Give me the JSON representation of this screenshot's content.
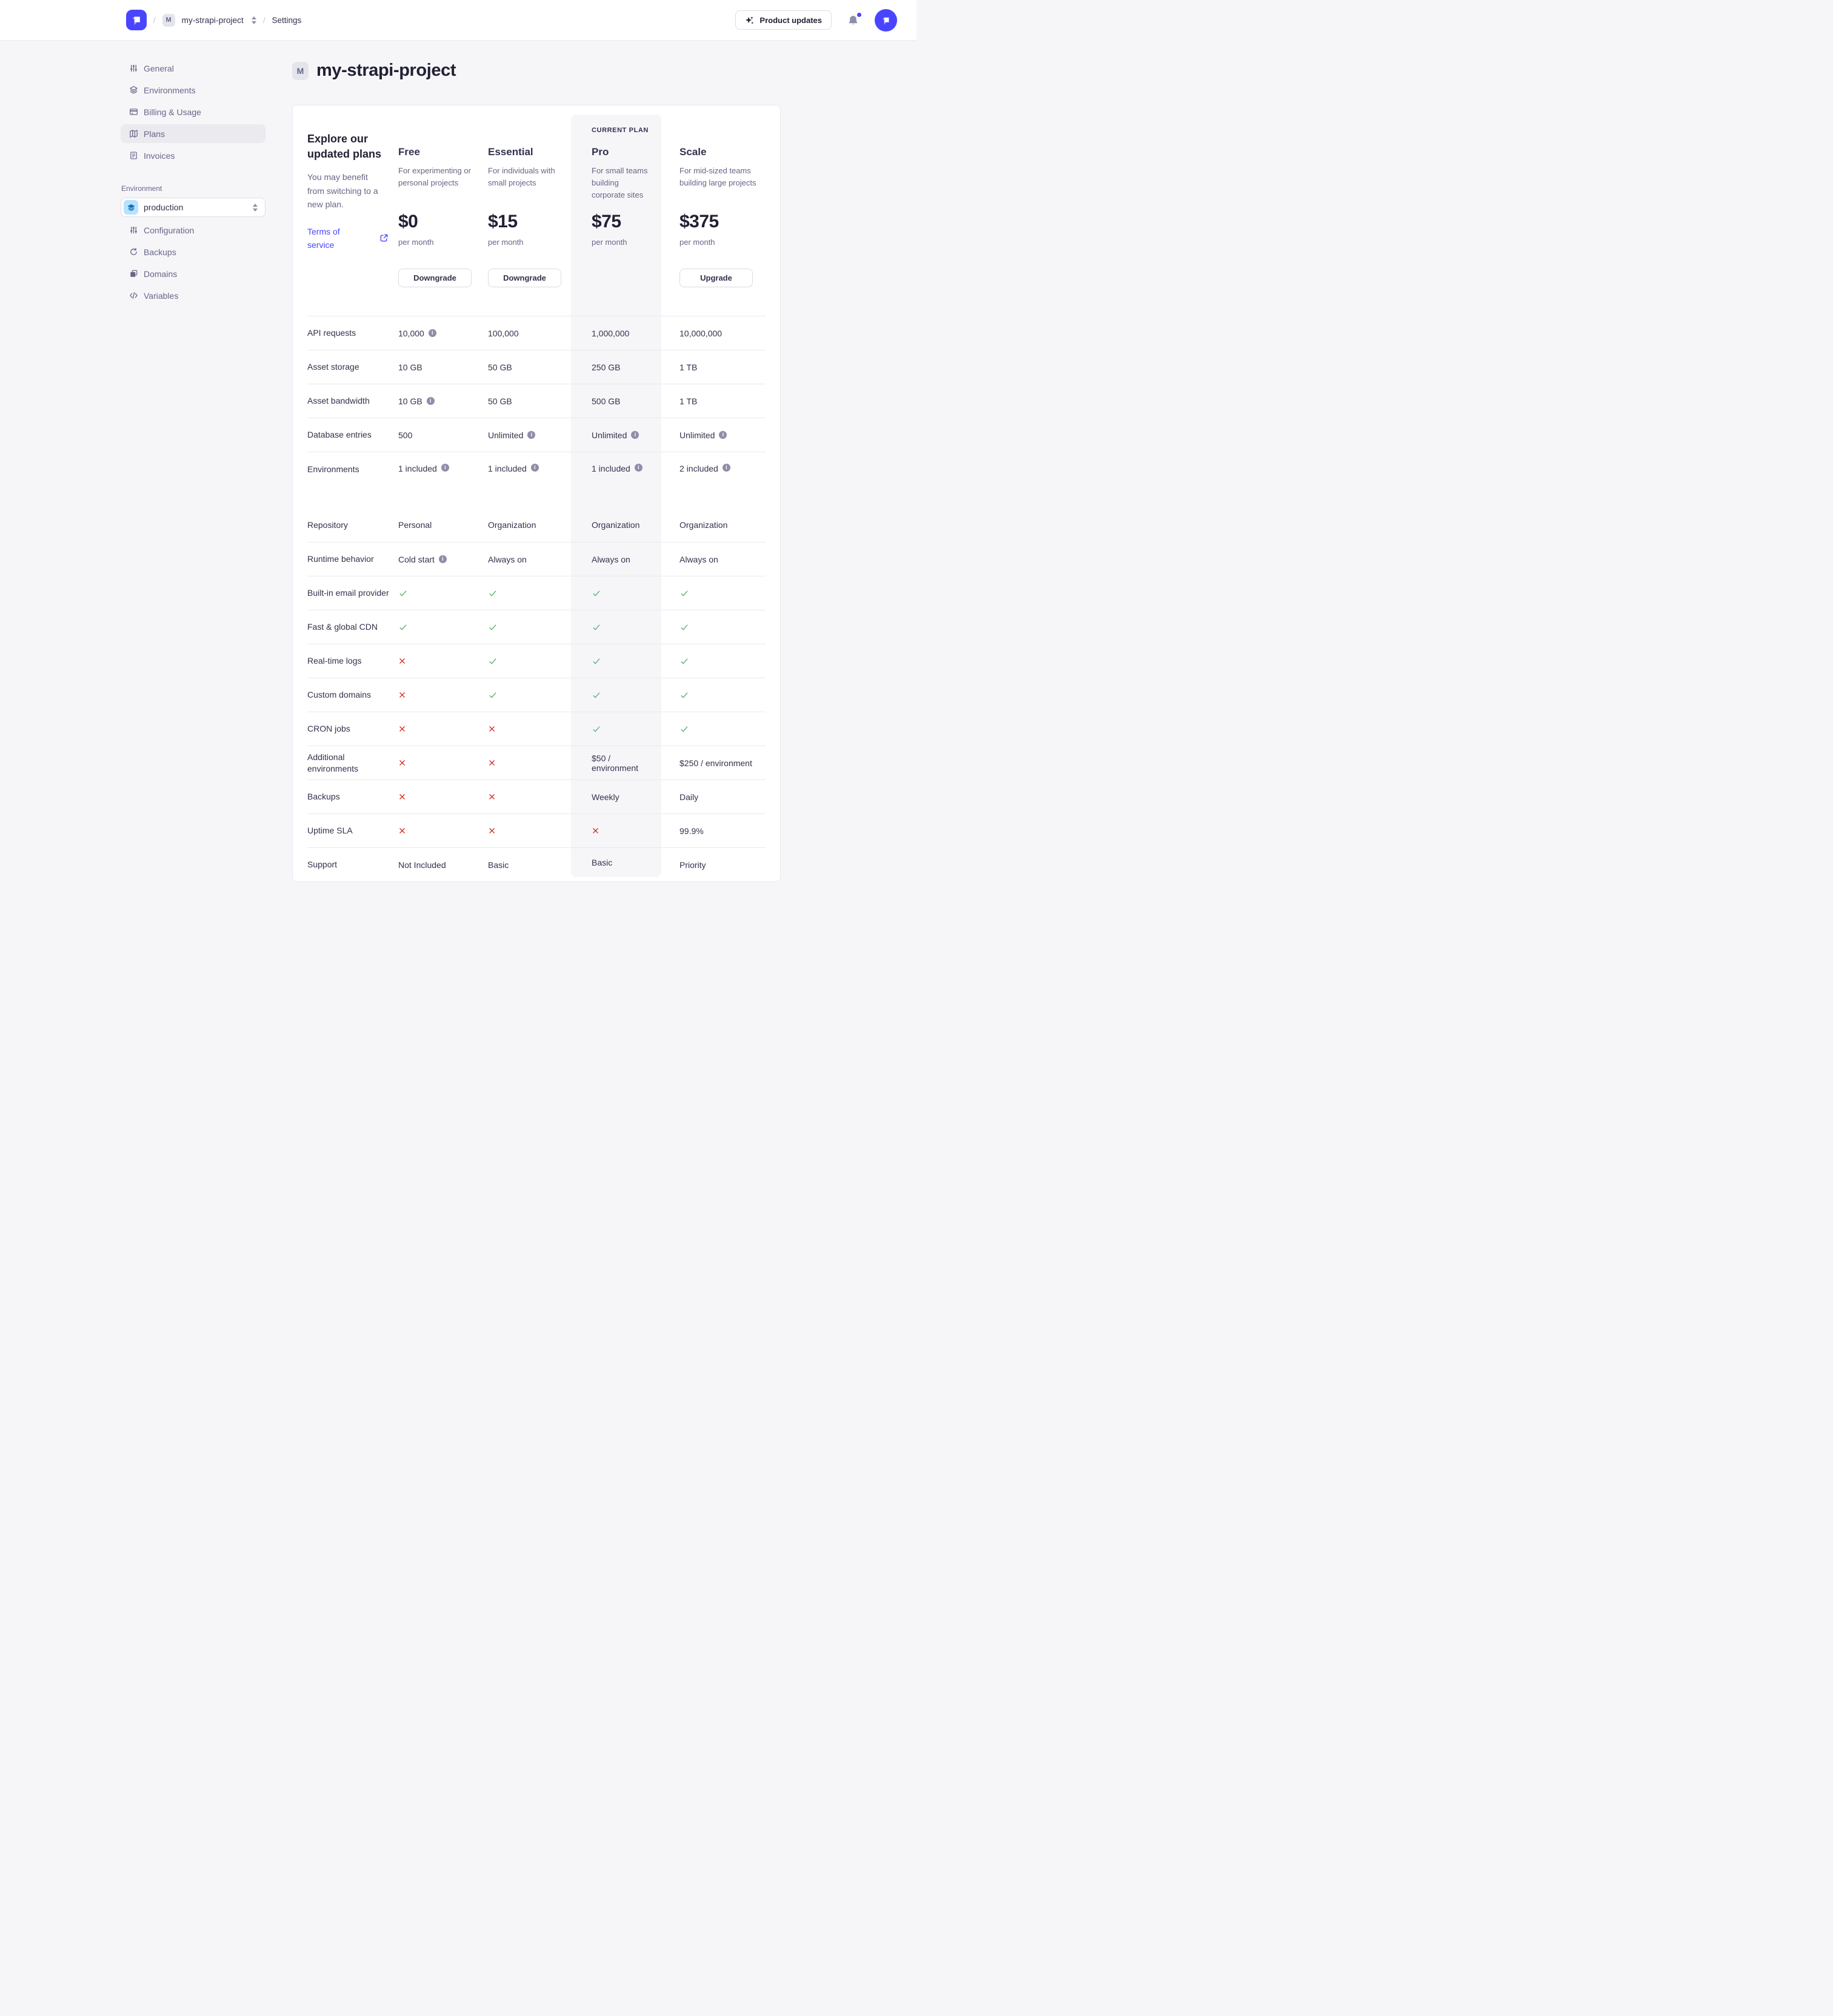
{
  "header": {
    "breadcrumb": {
      "chip": "M",
      "project": "my-strapi-project",
      "separator": "/",
      "settings": "Settings"
    },
    "product_updates": "Product updates"
  },
  "sidebar": {
    "items": [
      {
        "label": "General"
      },
      {
        "label": "Environments"
      },
      {
        "label": "Billing & Usage"
      },
      {
        "label": "Plans"
      },
      {
        "label": "Invoices"
      }
    ],
    "environment_label": "Environment",
    "environment_select": {
      "value": "production"
    },
    "env_items": [
      {
        "label": "Configuration"
      },
      {
        "label": "Backups"
      },
      {
        "label": "Domains"
      },
      {
        "label": "Variables"
      }
    ]
  },
  "main": {
    "title_chip": "M",
    "title": "my-strapi-project"
  },
  "plans": {
    "intro": {
      "heading": "Explore our updated plans",
      "body": "You may benefit from switching to a new plan.",
      "link": "Terms of service"
    },
    "current_plan_label": "CURRENT PLAN",
    "columns": [
      {
        "name": "Free",
        "desc": "For experimenting or personal projects",
        "price": "$0",
        "period": "per month",
        "button": "Downgrade",
        "current": false
      },
      {
        "name": "Essential",
        "desc": "For individuals with small projects",
        "price": "$15",
        "period": "per month",
        "button": "Downgrade",
        "current": false
      },
      {
        "name": "Pro",
        "desc": "For small teams building corporate sites",
        "price": "$75",
        "period": "per month",
        "button": null,
        "current": true
      },
      {
        "name": "Scale",
        "desc": "For mid-sized teams building large projects",
        "price": "$375",
        "period": "per month",
        "button": "Upgrade",
        "current": false
      }
    ],
    "rows": [
      {
        "label": "API requests",
        "values": [
          {
            "type": "text",
            "value": "10,000",
            "info": true
          },
          {
            "type": "text",
            "value": "100,000"
          },
          {
            "type": "text",
            "value": "1,000,000"
          },
          {
            "type": "text",
            "value": "10,000,000"
          }
        ]
      },
      {
        "label": "Asset storage",
        "values": [
          {
            "type": "text",
            "value": "10 GB"
          },
          {
            "type": "text",
            "value": "50 GB"
          },
          {
            "type": "text",
            "value": "250 GB"
          },
          {
            "type": "text",
            "value": "1 TB"
          }
        ]
      },
      {
        "label": "Asset bandwidth",
        "values": [
          {
            "type": "text",
            "value": "10 GB",
            "info": true
          },
          {
            "type": "text",
            "value": "50 GB"
          },
          {
            "type": "text",
            "value": "500 GB"
          },
          {
            "type": "text",
            "value": "1 TB"
          }
        ]
      },
      {
        "label": "Database entries",
        "values": [
          {
            "type": "text",
            "value": "500"
          },
          {
            "type": "text",
            "value": "Unlimited",
            "info": true
          },
          {
            "type": "text",
            "value": "Unlimited",
            "info": true
          },
          {
            "type": "text",
            "value": "Unlimited",
            "info": true
          }
        ]
      },
      {
        "label": "Environments",
        "tall": true,
        "values": [
          {
            "type": "text",
            "value": "1 included",
            "info": true
          },
          {
            "type": "text",
            "value": "1 included",
            "info": true
          },
          {
            "type": "text",
            "value": "1 included",
            "info": true
          },
          {
            "type": "text",
            "value": "2 included",
            "info": true
          }
        ]
      },
      {
        "label": "Repository",
        "noDivider": true,
        "values": [
          {
            "type": "text",
            "value": "Personal"
          },
          {
            "type": "text",
            "value": "Organization"
          },
          {
            "type": "text",
            "value": "Organization"
          },
          {
            "type": "text",
            "value": "Organization"
          }
        ]
      },
      {
        "label": "Runtime behavior",
        "values": [
          {
            "type": "text",
            "value": "Cold start",
            "info": true
          },
          {
            "type": "text",
            "value": "Always on"
          },
          {
            "type": "text",
            "value": "Always on"
          },
          {
            "type": "text",
            "value": "Always on"
          }
        ]
      },
      {
        "label": "Built-in email provider",
        "values": [
          {
            "type": "check"
          },
          {
            "type": "check"
          },
          {
            "type": "check"
          },
          {
            "type": "check"
          }
        ]
      },
      {
        "label": "Fast & global CDN",
        "values": [
          {
            "type": "check"
          },
          {
            "type": "check"
          },
          {
            "type": "check"
          },
          {
            "type": "check"
          }
        ]
      },
      {
        "label": "Real-time logs",
        "values": [
          {
            "type": "cross"
          },
          {
            "type": "check"
          },
          {
            "type": "check"
          },
          {
            "type": "check"
          }
        ]
      },
      {
        "label": "Custom domains",
        "values": [
          {
            "type": "cross"
          },
          {
            "type": "check"
          },
          {
            "type": "check"
          },
          {
            "type": "check"
          }
        ]
      },
      {
        "label": "CRON jobs",
        "values": [
          {
            "type": "cross"
          },
          {
            "type": "cross"
          },
          {
            "type": "check"
          },
          {
            "type": "check"
          }
        ]
      },
      {
        "label": "Additional environments",
        "values": [
          {
            "type": "cross"
          },
          {
            "type": "cross"
          },
          {
            "type": "text",
            "value": "$50 / environment"
          },
          {
            "type": "text",
            "value": "$250 / environment"
          }
        ]
      },
      {
        "label": "Backups",
        "values": [
          {
            "type": "cross"
          },
          {
            "type": "cross"
          },
          {
            "type": "text",
            "value": "Weekly"
          },
          {
            "type": "text",
            "value": "Daily"
          }
        ]
      },
      {
        "label": "Uptime SLA",
        "values": [
          {
            "type": "cross"
          },
          {
            "type": "cross"
          },
          {
            "type": "cross"
          },
          {
            "type": "text",
            "value": "99.9%"
          }
        ]
      },
      {
        "label": "Support",
        "values": [
          {
            "type": "text",
            "value": "Not Included"
          },
          {
            "type": "text",
            "value": "Basic"
          },
          {
            "type": "text",
            "value": "Basic"
          },
          {
            "type": "text",
            "value": "Priority"
          }
        ]
      }
    ]
  },
  "colors": {
    "accent": "#4945ff",
    "success": "#5cb176",
    "danger": "#d02b20",
    "info_icon": "#8e8ea9",
    "current_plan_bg": "#f6f6f9"
  }
}
